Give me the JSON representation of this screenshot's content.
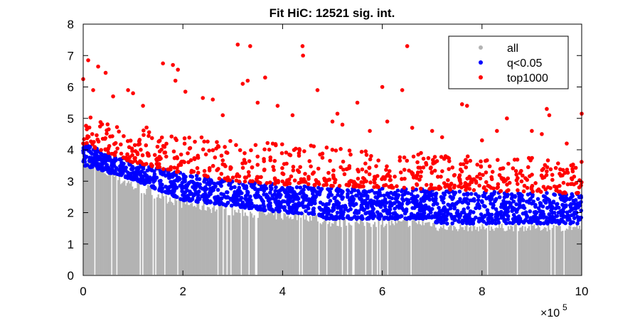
{
  "chart_data": {
    "type": "scatter",
    "title": "Fit HiC: 12521 sig. int.",
    "xlabel": "",
    "ylabel": "",
    "xlim": [
      0,
      1000000
    ],
    "ylim": [
      0,
      8
    ],
    "x_ticks": [
      0,
      200000,
      400000,
      600000,
      800000,
      1000000
    ],
    "x_tick_labels": [
      "0",
      "2",
      "4",
      "6",
      "8",
      "10"
    ],
    "x_multiplier_base": "×10",
    "x_multiplier_exponent": "5",
    "y_ticks": [
      0,
      1,
      2,
      3,
      4,
      5,
      6,
      7,
      8
    ],
    "y_tick_labels": [
      "0",
      "1",
      "2",
      "3",
      "4",
      "5",
      "6",
      "7",
      "8"
    ],
    "grid": false,
    "legend_position": "top-right",
    "series": [
      {
        "name": "all",
        "color": "#b3b3b3",
        "description_levels": {
          "upper_envelope": [
            [
              0,
              4.0
            ],
            [
              100000,
              3.1
            ],
            [
              200000,
              2.5
            ],
            [
              300000,
              2.2
            ],
            [
              400000,
              2.05
            ],
            [
              470000,
              2.0
            ],
            [
              480000,
              1.8
            ],
            [
              700000,
              1.8
            ],
            [
              710000,
              1.65
            ],
            [
              1000000,
              1.65
            ]
          ],
          "lower_bound": 0
        }
      },
      {
        "name": "q<0.05",
        "color": "#0000ff",
        "description_levels": {
          "band": [
            [
              0,
              3.5,
              4.2
            ],
            [
              100000,
              3.05,
              3.6
            ],
            [
              200000,
              2.4,
              3.25
            ],
            [
              300000,
              2.2,
              3.0
            ],
            [
              400000,
              2.0,
              2.9
            ],
            [
              470000,
              1.95,
              2.85
            ],
            [
              480000,
              1.8,
              2.8
            ],
            [
              700000,
              1.8,
              2.75
            ],
            [
              710000,
              1.65,
              2.7
            ],
            [
              1000000,
              1.65,
              2.6
            ]
          ]
        }
      },
      {
        "name": "top1000",
        "color": "#ff0000",
        "points": [
          [
            0,
            6.25
          ],
          [
            10000,
            6.85
          ],
          [
            20000,
            5.9
          ],
          [
            30000,
            6.65
          ],
          [
            45000,
            6.45
          ],
          [
            60000,
            5.7
          ],
          [
            90000,
            5.9
          ],
          [
            100000,
            5.8
          ],
          [
            120000,
            5.4
          ],
          [
            160000,
            6.75
          ],
          [
            180000,
            6.7
          ],
          [
            185000,
            6.2
          ],
          [
            190000,
            6.55
          ],
          [
            205000,
            5.85
          ],
          [
            240000,
            5.65
          ],
          [
            260000,
            5.6
          ],
          [
            280000,
            5.1
          ],
          [
            310000,
            7.35
          ],
          [
            320000,
            6.1
          ],
          [
            330000,
            6.2
          ],
          [
            335000,
            7.3
          ],
          [
            350000,
            5.5
          ],
          [
            365000,
            6.3
          ],
          [
            390000,
            5.4
          ],
          [
            420000,
            5.1
          ],
          [
            440000,
            7.3
          ],
          [
            441000,
            7.0
          ],
          [
            470000,
            5.9
          ],
          [
            500000,
            4.9
          ],
          [
            510000,
            5.15
          ],
          [
            520000,
            4.8
          ],
          [
            550000,
            5.5
          ],
          [
            575000,
            4.6
          ],
          [
            600000,
            6.0
          ],
          [
            610000,
            4.9
          ],
          [
            640000,
            5.9
          ],
          [
            650000,
            7.3
          ],
          [
            660000,
            4.7
          ],
          [
            700000,
            4.6
          ],
          [
            720000,
            4.4
          ],
          [
            760000,
            5.45
          ],
          [
            770000,
            5.4
          ],
          [
            800000,
            4.3
          ],
          [
            830000,
            4.6
          ],
          [
            850000,
            5.0
          ],
          [
            900000,
            4.6
          ],
          [
            920000,
            4.5
          ],
          [
            930000,
            5.3
          ],
          [
            935000,
            5.1
          ],
          [
            970000,
            4.2
          ],
          [
            1000000,
            5.15
          ]
        ],
        "band": [
          [
            0,
            4.2,
            5.2
          ],
          [
            100000,
            3.6,
            4.8
          ],
          [
            200000,
            3.25,
            4.5
          ],
          [
            300000,
            3.0,
            4.3
          ],
          [
            400000,
            2.9,
            4.2
          ],
          [
            500000,
            2.85,
            4.1
          ],
          [
            600000,
            2.8,
            4.0
          ],
          [
            700000,
            2.75,
            3.9
          ],
          [
            800000,
            2.7,
            3.8
          ],
          [
            1000000,
            2.6,
            3.7
          ]
        ]
      }
    ]
  }
}
